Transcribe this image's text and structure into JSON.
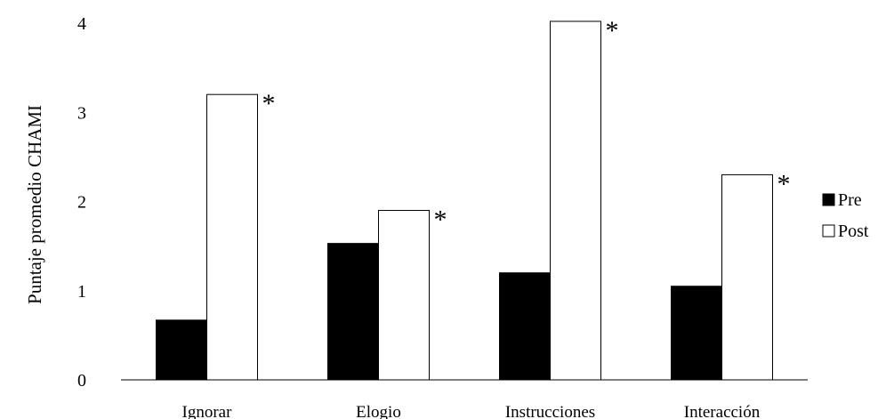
{
  "chart_data": {
    "type": "bar",
    "title": "",
    "xlabel": "",
    "ylabel": "Puntaje promedio CHAMI",
    "ylim": [
      0,
      4
    ],
    "yticks": [
      "0",
      "1",
      "2",
      "3",
      "4"
    ],
    "grid": false,
    "legend_position": "right",
    "categories": [
      "Ignorar",
      "Elogio",
      "Instrucciones",
      "Interacción"
    ],
    "series": [
      {
        "name": "Pre",
        "color": "#000000",
        "values": [
          0.67,
          1.53,
          1.2,
          1.05
        ]
      },
      {
        "name": "Post",
        "color": "#ffffff",
        "values": [
          3.2,
          1.9,
          4.02,
          2.3
        ]
      }
    ],
    "significance_marker": "*",
    "significance_on_series": "Post"
  }
}
